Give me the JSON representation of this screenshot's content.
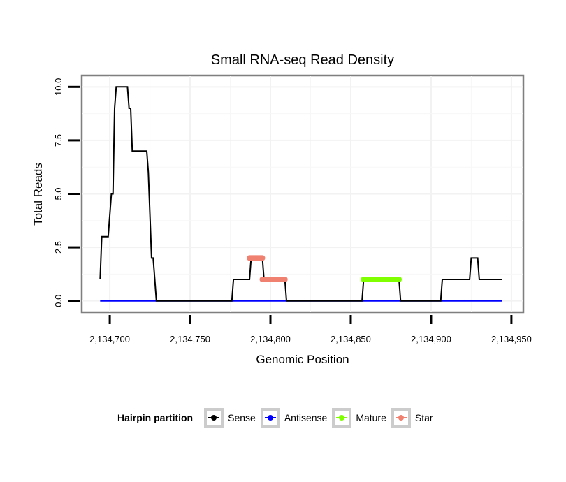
{
  "chart_data": {
    "type": "line",
    "title": "Small RNA-seq Read Density",
    "xlabel": "Genomic Position",
    "ylabel": "Total Reads",
    "xlim": [
      2134683,
      2134957
    ],
    "ylim": [
      -0.5,
      10.5
    ],
    "x_ticks": [
      2134700,
      2134750,
      2134800,
      2134850,
      2134900,
      2134950
    ],
    "x_tick_labels": [
      "2,134,700",
      "2,134,750",
      "2,134,800",
      "2,134,850",
      "2,134,900",
      "2,134,950"
    ],
    "y_ticks": [
      0,
      2.5,
      5,
      7.5,
      10
    ],
    "y_tick_labels": [
      "0.0",
      "2.5",
      "5.0",
      "7.5",
      "10.0"
    ],
    "grid": true,
    "legend": {
      "title": "Hairpin partition",
      "placement": "bottom",
      "entries": [
        "Sense",
        "Antisense",
        "Mature",
        "Star"
      ]
    },
    "series": [
      {
        "name": "Sense",
        "color": "#000000",
        "points": [
          [
            2134694,
            1
          ],
          [
            2134695,
            3
          ],
          [
            2134699,
            3
          ],
          [
            2134701,
            5
          ],
          [
            2134702,
            5
          ],
          [
            2134703,
            9
          ],
          [
            2134704,
            10
          ],
          [
            2134711,
            10
          ],
          [
            2134712,
            9
          ],
          [
            2134713,
            9
          ],
          [
            2134714,
            7
          ],
          [
            2134723,
            7
          ],
          [
            2134724,
            6
          ],
          [
            2134726,
            2
          ],
          [
            2134727,
            2
          ],
          [
            2134729,
            0
          ],
          [
            2134776,
            0
          ],
          [
            2134777,
            1
          ],
          [
            2134787,
            1
          ],
          [
            2134788,
            2
          ],
          [
            2134795,
            2
          ],
          [
            2134796,
            1
          ],
          [
            2134809,
            1
          ],
          [
            2134810,
            0
          ],
          [
            2134857,
            0
          ],
          [
            2134858,
            1
          ],
          [
            2134880,
            1
          ],
          [
            2134881,
            0
          ],
          [
            2134906,
            0
          ],
          [
            2134907,
            1
          ],
          [
            2134924,
            1
          ],
          [
            2134925,
            2
          ],
          [
            2134929,
            2
          ],
          [
            2134930,
            1
          ],
          [
            2134944,
            1
          ]
        ]
      },
      {
        "name": "Antisense",
        "color": "#0000ff",
        "points": [
          [
            2134694,
            0
          ],
          [
            2134944,
            0
          ]
        ]
      },
      {
        "name": "Mature",
        "color": "#7fff00",
        "points": [
          [
            2134858,
            1
          ],
          [
            2134880,
            1
          ]
        ]
      },
      {
        "name": "Star",
        "color": "#f08070",
        "segments": [
          [
            [
              2134787,
              2
            ],
            [
              2134795,
              2
            ]
          ],
          [
            [
              2134795,
              1
            ],
            [
              2134809,
              1
            ]
          ]
        ]
      }
    ]
  }
}
